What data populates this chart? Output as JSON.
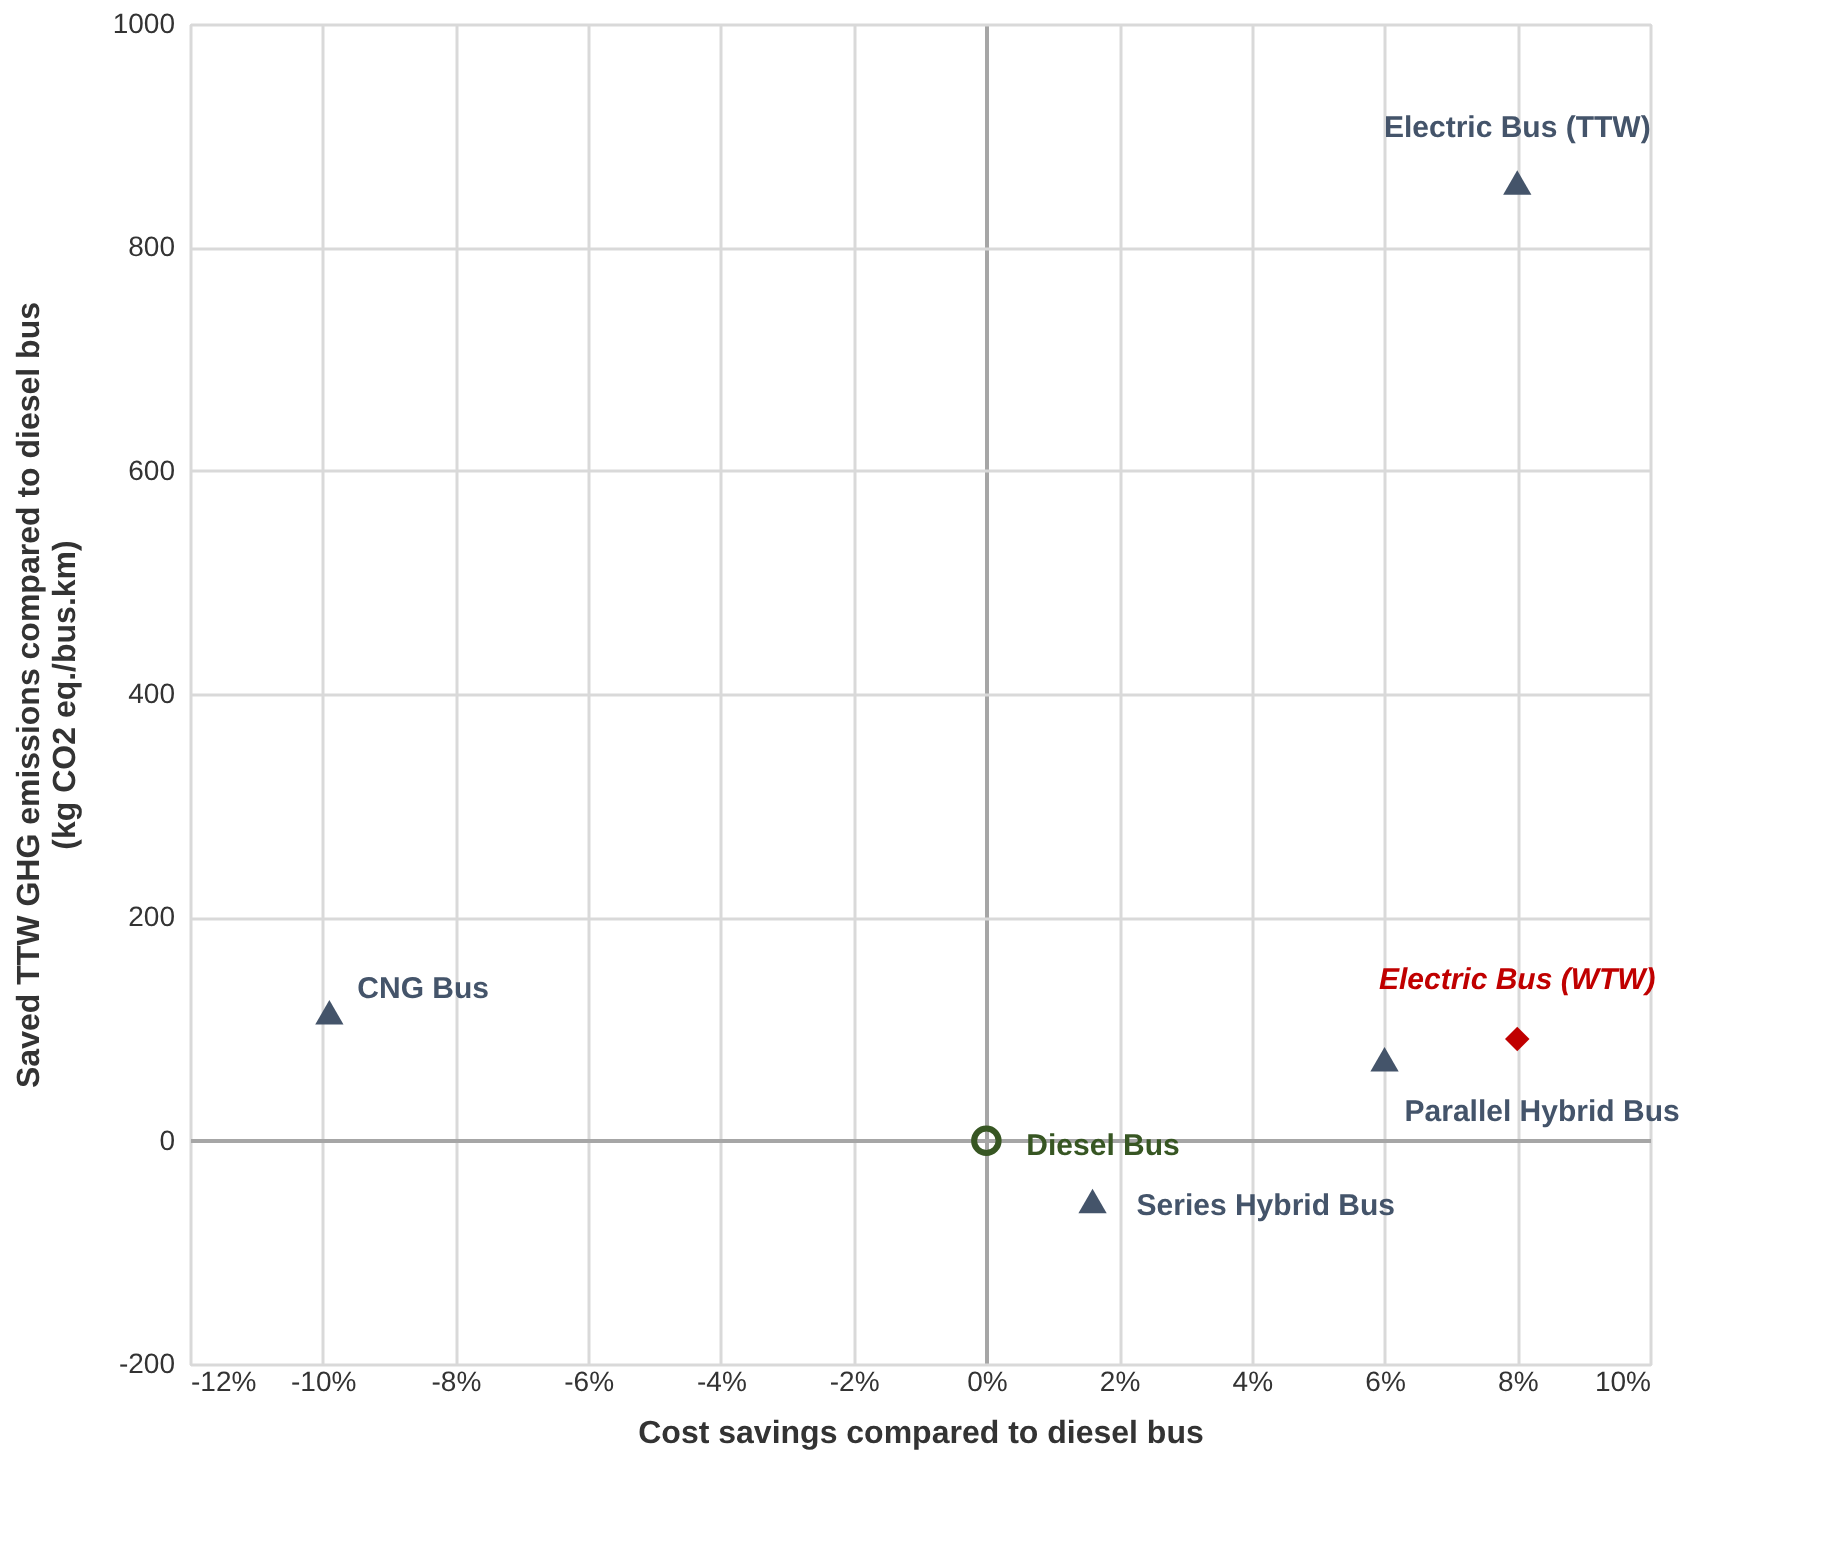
{
  "chart_data": {
    "type": "scatter",
    "xlabel": "Cost savings compared to diesel bus",
    "ylabel": "Saved TTW GHG emissions compared to  diesel bus\n(kg CO2 eq./bus.km)",
    "xlim": [
      -12,
      10
    ],
    "xticks": [
      {
        "value": -12,
        "label": "-12%"
      },
      {
        "value": -10,
        "label": "-10%"
      },
      {
        "value": -8,
        "label": "-8%"
      },
      {
        "value": -6,
        "label": "-6%"
      },
      {
        "value": -4,
        "label": "-4%"
      },
      {
        "value": -2,
        "label": "-2%"
      },
      {
        "value": 0,
        "label": "0%"
      },
      {
        "value": 2,
        "label": "2%"
      },
      {
        "value": 4,
        "label": "4%"
      },
      {
        "value": 6,
        "label": "6%"
      },
      {
        "value": 8,
        "label": "8%"
      },
      {
        "value": 10,
        "label": "10%"
      }
    ],
    "ylim": [
      -200,
      1000
    ],
    "yticks": [
      -200,
      0,
      200,
      400,
      600,
      800,
      1000
    ],
    "grid": true,
    "series": [
      {
        "name": "CNG Bus",
        "color": "#44546a",
        "marker": "triangle",
        "x": [
          -9.9
        ],
        "values": [
          115
        ]
      },
      {
        "name": "Diesel Bus",
        "color": "#375623",
        "marker": "circle",
        "x": [
          0
        ],
        "values": [
          0
        ]
      },
      {
        "name": "Series Hybrid Bus",
        "color": "#44546a",
        "marker": "triangle",
        "x": [
          1.6
        ],
        "values": [
          -54
        ]
      },
      {
        "name": "Parallel Hybrid Bus",
        "color": "#44546a",
        "marker": "triangle",
        "x": [
          6
        ],
        "values": [
          73
        ]
      },
      {
        "name": "Electric Bus (TTW)",
        "color": "#44546a",
        "marker": "triangle",
        "x": [
          8
        ],
        "values": [
          858
        ]
      },
      {
        "name": "Electric Bus (WTW)",
        "color": "#c00000",
        "marker": "diamond",
        "x": [
          8
        ],
        "values": [
          91
        ]
      }
    ]
  }
}
